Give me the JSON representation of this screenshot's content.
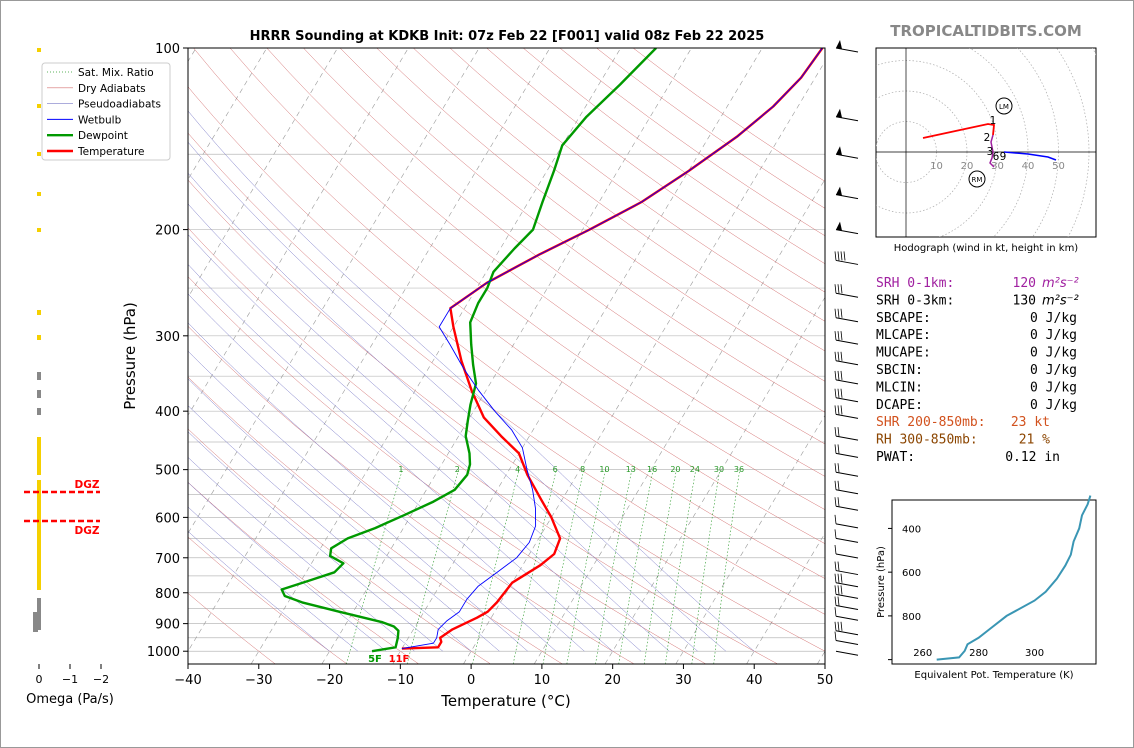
{
  "brand": "TROPICALTIDBITS.COM",
  "chart_data": {
    "type": "line",
    "title": "HRRR Sounding at KDKB Init: 07z Feb 22 [F001] valid 08z Feb 22 2025",
    "xlabel": "Temperature (°C)",
    "ylabel": "Pressure (hPa)",
    "xlim": [
      -40,
      50
    ],
    "ylim": [
      1050,
      100
    ],
    "y_log": true,
    "xticks": [
      -40,
      -30,
      -20,
      -10,
      0,
      10,
      20,
      30,
      40,
      50
    ],
    "yticks": [
      100,
      200,
      300,
      400,
      500,
      600,
      700,
      800,
      900,
      1000
    ],
    "legend": [
      "Sat. Mix. Ratio",
      "Dry Adiabats",
      "Pseudoadiabats",
      "Wetbulb",
      "Dewpoint",
      "Temperature"
    ],
    "mixing_ratio_labels": [
      "1",
      "2",
      "4",
      "6",
      "8",
      "10",
      "13",
      "16",
      "20",
      "24",
      "30",
      "36"
    ],
    "series": [
      {
        "name": "Temperature",
        "color": "#ff0000",
        "points": [
          [
            -10,
            990
          ],
          [
            -5,
            985
          ],
          [
            -5,
            965
          ],
          [
            -5.5,
            950
          ],
          [
            -4.5,
            920
          ],
          [
            -2,
            880
          ],
          [
            -1,
            860
          ],
          [
            -0.5,
            830
          ],
          [
            0,
            770
          ],
          [
            2.5,
            720
          ],
          [
            3.5,
            690
          ],
          [
            3,
            650
          ],
          [
            0,
            600
          ],
          [
            -3,
            560
          ],
          [
            -7,
            510
          ],
          [
            -10,
            470
          ],
          [
            -14,
            440
          ],
          [
            -18,
            410
          ],
          [
            -22,
            370
          ],
          [
            -26,
            330
          ],
          [
            -30,
            290
          ],
          [
            -32,
            270
          ],
          [
            -29,
            245
          ],
          [
            -24,
            220
          ],
          [
            -19,
            200
          ],
          [
            -14,
            180
          ],
          [
            -10,
            160
          ],
          [
            -6,
            140
          ],
          [
            -3.5,
            125
          ],
          [
            -2,
            112
          ],
          [
            -1.5,
            100
          ]
        ]
      },
      {
        "name": "Dewpoint",
        "color": "#009900",
        "points": [
          [
            -14,
            1000
          ],
          [
            -11,
            985
          ],
          [
            -11.5,
            950
          ],
          [
            -12,
            925
          ],
          [
            -13,
            910
          ],
          [
            -15,
            895
          ],
          [
            -18,
            880
          ],
          [
            -22,
            860
          ],
          [
            -28,
            830
          ],
          [
            -31,
            810
          ],
          [
            -32,
            790
          ],
          [
            -29,
            765
          ],
          [
            -26,
            740
          ],
          [
            -25.5,
            715
          ],
          [
            -28,
            695
          ],
          [
            -28.5,
            675
          ],
          [
            -27,
            650
          ],
          [
            -24,
            625
          ],
          [
            -21,
            595
          ],
          [
            -18,
            565
          ],
          [
            -16,
            540
          ],
          [
            -15.5,
            510
          ],
          [
            -16,
            490
          ],
          [
            -17,
            470
          ],
          [
            -19,
            440
          ],
          [
            -20,
            415
          ],
          [
            -21,
            390
          ],
          [
            -22,
            360
          ],
          [
            -24,
            335
          ],
          [
            -26,
            310
          ],
          [
            -28,
            285
          ],
          [
            -28.5,
            265
          ],
          [
            -28.5,
            250
          ],
          [
            -29,
            235
          ],
          [
            -28,
            215
          ],
          [
            -27,
            200
          ],
          [
            -28,
            180
          ],
          [
            -29,
            160
          ],
          [
            -30,
            145
          ],
          [
            -29,
            130
          ],
          [
            -27,
            115
          ],
          [
            -25,
            100
          ]
        ]
      },
      {
        "name": "Wetbulb",
        "color": "#0000ff",
        "points": [
          [
            -10,
            990
          ],
          [
            -6,
            970
          ],
          [
            -6,
            950
          ],
          [
            -6.5,
            920
          ],
          [
            -6,
            890
          ],
          [
            -5,
            860
          ],
          [
            -5,
            820
          ],
          [
            -4.5,
            780
          ],
          [
            -3,
            740
          ],
          [
            -1.5,
            700
          ],
          [
            -1,
            660
          ],
          [
            -1.5,
            620
          ],
          [
            -3,
            580
          ],
          [
            -5,
            540
          ],
          [
            -7.5,
            500
          ],
          [
            -10,
            460
          ],
          [
            -13,
            430
          ],
          [
            -17,
            400
          ],
          [
            -21,
            370
          ],
          [
            -25,
            340
          ],
          [
            -29,
            310
          ],
          [
            -32,
            290
          ],
          [
            -32,
            270
          ],
          [
            -29,
            245
          ],
          [
            -24,
            220
          ],
          [
            -19,
            200
          ],
          [
            -14,
            180
          ],
          [
            -10,
            160
          ],
          [
            -6,
            140
          ],
          [
            -3.5,
            125
          ],
          [
            -2,
            112
          ],
          [
            -1.5,
            100
          ]
        ]
      }
    ],
    "surface_labels": {
      "dewpoint": "5F",
      "temperature": "11F"
    },
    "omega": {
      "xlabel": "Omega (Pa/s)",
      "xticks": [
        "0",
        "−1",
        "−2"
      ],
      "dgz_label": "DGZ",
      "dgz_levels": [
        545,
        610
      ]
    },
    "hodograph": {
      "xlabel": "Hodograph (wind in kt, height in km)",
      "ring_labels": [
        "10",
        "20",
        "30",
        "40",
        "50"
      ],
      "height_labels": [
        "1",
        "2",
        "3",
        "6",
        "9"
      ],
      "markers": [
        "LM",
        "RM"
      ]
    },
    "theta_e": {
      "xlabel": "Equivalent Pot. Temperature (K)",
      "ylabel": "Pressure (hPa)",
      "xticks": [
        "260",
        "280",
        "300"
      ],
      "yticks": [
        "400",
        "600",
        "800"
      ],
      "color": "#3a96b4",
      "points": [
        [
          265,
          1000
        ],
        [
          273,
          990
        ],
        [
          275,
          960
        ],
        [
          276,
          930
        ],
        [
          280,
          900
        ],
        [
          284,
          860
        ],
        [
          290,
          800
        ],
        [
          300,
          730
        ],
        [
          304,
          690
        ],
        [
          308,
          630
        ],
        [
          311,
          570
        ],
        [
          313,
          520
        ],
        [
          314,
          460
        ],
        [
          316,
          400
        ],
        [
          317,
          340
        ],
        [
          319,
          290
        ],
        [
          320,
          250
        ]
      ]
    },
    "parameters": [
      {
        "label": "SRH 0-1km:",
        "value": "120",
        "unit": "m²s⁻²",
        "color": "#a020a0"
      },
      {
        "label": "SRH 0-3km:",
        "value": "130",
        "unit": "m²s⁻²",
        "color": "#000000"
      },
      {
        "label": "SBCAPE:",
        "value": "0 J/kg",
        "unit": "",
        "color": "#000000"
      },
      {
        "label": "MLCAPE:",
        "value": "0 J/kg",
        "unit": "",
        "color": "#000000"
      },
      {
        "label": "MUCAPE:",
        "value": "0 J/kg",
        "unit": "",
        "color": "#000000"
      },
      {
        "label": "SBCIN:",
        "value": "0 J/kg",
        "unit": "",
        "color": "#000000"
      },
      {
        "label": "MLCIN:",
        "value": "0 J/kg",
        "unit": "",
        "color": "#000000"
      },
      {
        "label": "DCAPE:",
        "value": "0 J/kg",
        "unit": "",
        "color": "#000000"
      },
      {
        "label": "SHR 200-850mb:",
        "value": "23 kt",
        "unit": "",
        "color": "#d2521e"
      },
      {
        "label": "RH 300-850mb:",
        "value": "21 %",
        "unit": "",
        "color": "#8b4500"
      },
      {
        "label": "PWAT:",
        "value": "0.12 in",
        "unit": "",
        "color": "#000000"
      }
    ]
  }
}
